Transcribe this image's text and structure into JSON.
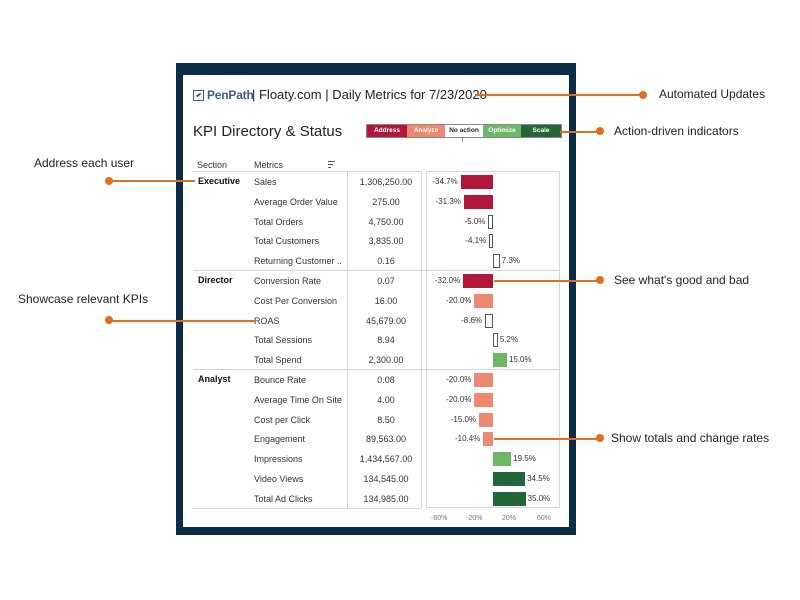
{
  "header": {
    "logo_text": "PenPath",
    "title": "| Floaty.com | Daily Metrics for 7/23/2020"
  },
  "kpi": {
    "title": "KPI Directory & Status"
  },
  "legend": {
    "items": [
      {
        "label": "Address",
        "color": "#b0173a",
        "text_color": "#ffffff"
      },
      {
        "label": "Analyze",
        "color": "#ef8870",
        "text_color": "#ffffff"
      },
      {
        "label": "No action",
        "color": "#ffffff",
        "text_color": "#222222"
      },
      {
        "label": "Optimize",
        "color": "#6cb865",
        "text_color": "#ffffff"
      },
      {
        "label": "Scale",
        "color": "#23663a",
        "text_color": "#ffffff"
      }
    ]
  },
  "table": {
    "headers": {
      "section": "Section",
      "metrics": "Metrics"
    },
    "groups": [
      {
        "section": "Executive",
        "rows": [
          {
            "metric": "Sales",
            "value": "1,306,250.00",
            "change_label": "-34.7%",
            "change": -34.7,
            "status": "address"
          },
          {
            "metric": "Average Order Value",
            "value": "275.00",
            "change_label": "-31.3%",
            "change": -31.3,
            "status": "address"
          },
          {
            "metric": "Total Orders",
            "value": "4,750.00",
            "change_label": "-5.0%",
            "change": -5.0,
            "status": "none"
          },
          {
            "metric": "Total Customers",
            "value": "3,835.00",
            "change_label": "-4.1%",
            "change": -4.1,
            "status": "none"
          },
          {
            "metric": "Returning Customer ..",
            "value": "0.16",
            "change_label": "7.3%",
            "change": 7.3,
            "status": "none"
          }
        ]
      },
      {
        "section": "Director",
        "rows": [
          {
            "metric": "Conversion Rate",
            "value": "0.07",
            "change_label": "-32.0%",
            "change": -32.0,
            "status": "address"
          },
          {
            "metric": "Cost Per Conversion",
            "value": "16.00",
            "change_label": "-20.0%",
            "change": -20.0,
            "status": "analyze"
          },
          {
            "metric": "ROAS",
            "value": "45,679.00",
            "change_label": "-8.6%",
            "change": -8.6,
            "status": "none"
          },
          {
            "metric": "Total Sessions",
            "value": "8.94",
            "change_label": "5.2%",
            "change": 5.2,
            "status": "none"
          },
          {
            "metric": "Total Spend",
            "value": "2,300.00",
            "change_label": "15.0%",
            "change": 15.0,
            "status": "optimize"
          }
        ]
      },
      {
        "section": "Analyst",
        "rows": [
          {
            "metric": "Bounce Rate",
            "value": "0.08",
            "change_label": "-20.0%",
            "change": -20.0,
            "status": "analyze"
          },
          {
            "metric": "Average Time On Site",
            "value": "4.00",
            "change_label": "-20.0%",
            "change": -20.0,
            "status": "analyze"
          },
          {
            "metric": "Cost per Click",
            "value": "8.50",
            "change_label": "-15.0%",
            "change": -15.0,
            "status": "analyze"
          },
          {
            "metric": "Engagement",
            "value": "89,563.00",
            "change_label": "-10.4%",
            "change": -10.4,
            "status": "analyze"
          },
          {
            "metric": "Impressions",
            "value": "1,434,567.00",
            "change_label": "19.5%",
            "change": 19.5,
            "status": "optimize"
          },
          {
            "metric": "Video Views",
            "value": "134,545.00",
            "change_label": "34.5%",
            "change": 34.5,
            "status": "scale"
          },
          {
            "metric": "Total Ad Clicks",
            "value": "134,985.00",
            "change_label": "35.0%",
            "change": 35.0,
            "status": "scale"
          }
        ]
      }
    ]
  },
  "axis": {
    "ticks": [
      "-60%",
      "-20%",
      "20%",
      "60%"
    ]
  },
  "status_colors": {
    "address": "#b0173a",
    "analyze": "#ef8870",
    "none": "#ffffff",
    "optimize": "#6cb865",
    "scale": "#23663a"
  },
  "annotations": {
    "automated_updates": "Automated Updates",
    "action_indicators": "Action-driven indicators",
    "address_user": "Address each user",
    "good_bad": "See what's good and bad",
    "showcase_kpis": "Showcase relevant KPIs",
    "totals_rates": "Show totals and change rates"
  },
  "accent_color": "#e0701f",
  "frame_color": "#0d2c45"
}
